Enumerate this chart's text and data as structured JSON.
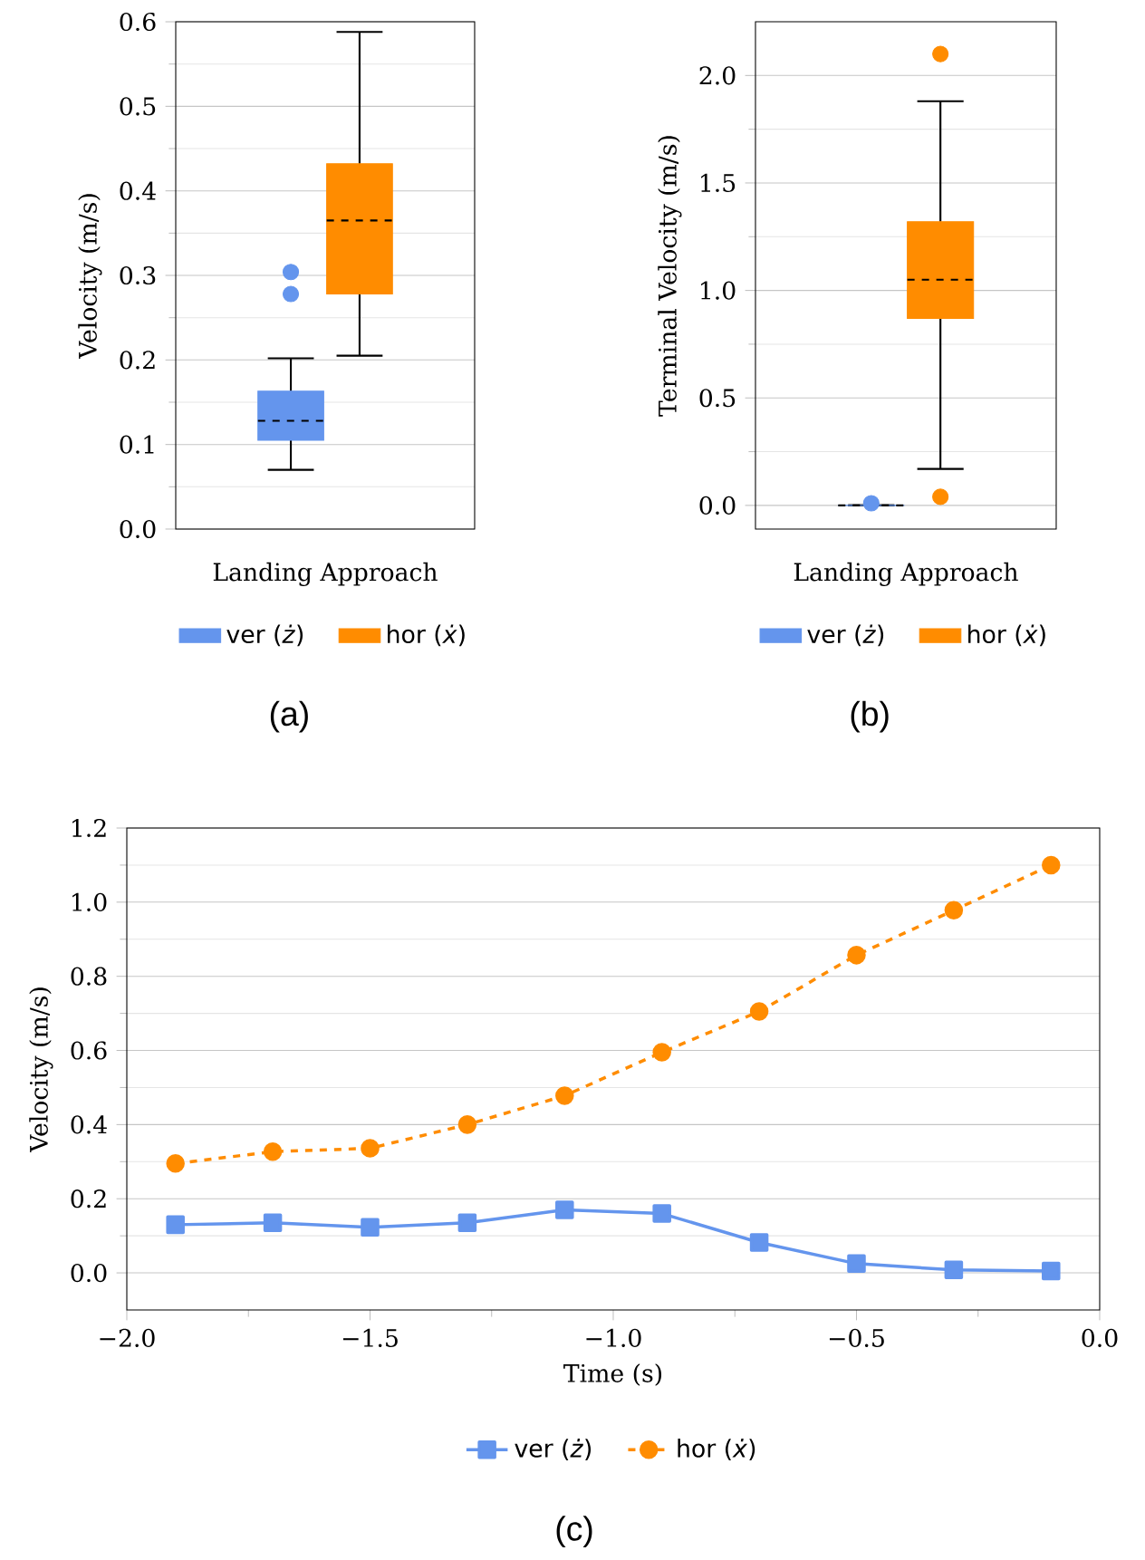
{
  "chart_data": [
    {
      "type": "box",
      "categories": [
        "Landing Approach"
      ],
      "ylabel": "Velocity (m/s)",
      "ylim": [
        0,
        0.6
      ],
      "yticks": [
        {
          "value": 0,
          "label": "0.0"
        },
        0.1,
        0.2,
        0.3,
        0.4,
        0.5,
        0.6
      ],
      "grid": "y",
      "legend": "bottom",
      "annotations": [
        "(a)"
      ],
      "series": [
        {
          "name": "ver (*ż*)",
          "color": "#6495ed",
          "boxes": [
            {
              "low": 0.07,
              "q1": 0.105,
              "median": 0.128,
              "q3": 0.163,
              "high": 0.202,
              "outliers": [
                0.278,
                0.304
              ]
            }
          ]
        },
        {
          "name": "hor (*ẋ*)",
          "color": "#ff8c00",
          "boxes": [
            {
              "low": 0.205,
              "q1": 0.278,
              "median": 0.365,
              "q3": 0.432,
              "high": 0.588
            }
          ]
        }
      ]
    },
    {
      "type": "box",
      "categories": [
        "Landing Approach"
      ],
      "ylabel": "Terminal Velocity (m/s)",
      "ylim": [
        -0.11,
        2.25
      ],
      "yticks": [
        {
          "value": 0,
          "label": "0.0"
        },
        0.5,
        {
          "value": 1,
          "label": "1.0"
        },
        1.5,
        {
          "value": 2,
          "label": "2.0"
        }
      ],
      "grid": "y",
      "legend": "bottom",
      "annotations": [
        "(b)"
      ],
      "series": [
        {
          "name": "ver (*ż*)",
          "color": "#6495ed",
          "boxes": [
            {
              "low": 0,
              "q1": 0,
              "median": 0,
              "q3": 0,
              "high": 0,
              "outliers": [
                0.01
              ]
            }
          ]
        },
        {
          "name": "hor (*ẋ*)",
          "color": "#ff8c00",
          "boxes": [
            {
              "low": 0.17,
              "q1": 0.87,
              "median": 1.05,
              "q3": 1.32,
              "high": 1.88,
              "outliers": [
                2.1,
                0.04
              ]
            }
          ]
        }
      ]
    },
    {
      "type": "line",
      "xlabel": "Time (s)",
      "ylabel": "Velocity (m/s)",
      "xlim": [
        -2,
        0
      ],
      "ylim": [
        -0.1,
        1.2
      ],
      "xticks": [
        {
          "value": -2,
          "label": "−2.0"
        },
        {
          "value": -1.5,
          "label": "−1.5"
        },
        {
          "value": -1,
          "label": "−1.0"
        },
        {
          "value": -0.5,
          "label": "−0.5"
        },
        {
          "value": 0,
          "label": "0.0"
        }
      ],
      "yticks": [
        {
          "value": 0,
          "label": "0.0"
        },
        0.2,
        0.4,
        0.6,
        0.8,
        {
          "value": 1,
          "label": "1.0"
        },
        1.2
      ],
      "grid": "y",
      "legend": "bottom",
      "annotations": [
        "(c)"
      ],
      "x": [
        -1.9,
        -1.7,
        -1.5,
        -1.3,
        -1.1,
        -0.9,
        -0.7,
        -0.5,
        -0.3,
        -0.1
      ],
      "series": [
        {
          "name": "ver (*ż*)",
          "color": "#6495ed",
          "marker": "square",
          "line_style": "solid",
          "values": [
            0.13,
            0.135,
            0.123,
            0.135,
            0.17,
            0.16,
            0.082,
            0.025,
            0.008,
            0.005
          ]
        },
        {
          "name": "hor (*ẋ*)",
          "color": "#ff8c00",
          "marker": "circle",
          "line_style": "dashed",
          "values": [
            0.295,
            0.327,
            0.336,
            0.4,
            0.478,
            0.595,
            0.705,
            0.857,
            0.978,
            1.1
          ]
        }
      ]
    }
  ]
}
